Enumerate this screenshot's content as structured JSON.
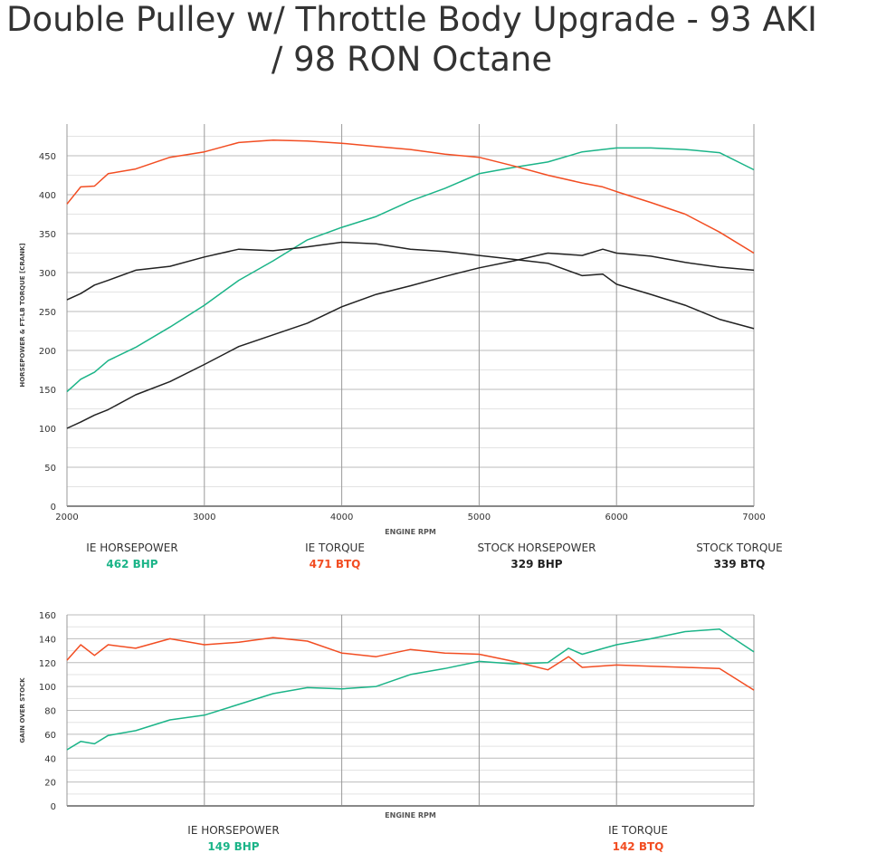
{
  "title": {
    "line1": "Double Pulley w/ Throttle Body Upgrade - 93 AKI",
    "line2": "/ 98 RON Octane"
  },
  "colors": {
    "ie_hp": "#1bb488",
    "ie_tq": "#f24d22",
    "stock": "#222222"
  },
  "chart_data": [
    {
      "type": "line",
      "xlabel": "ENGINE RPM",
      "ylabel": "HORSEPOWER & FT-LB TORQUE [CRANK]",
      "xlim": [
        2000,
        7000
      ],
      "ylim": [
        0,
        475
      ],
      "xticks": [
        2000,
        3000,
        4000,
        5000,
        6000,
        7000
      ],
      "yticks": [
        0,
        50,
        100,
        150,
        200,
        250,
        300,
        350,
        400,
        450
      ],
      "grid": true,
      "x": [
        2000,
        2100,
        2200,
        2300,
        2500,
        2750,
        3000,
        3250,
        3500,
        3750,
        4000,
        4250,
        4500,
        4750,
        5000,
        5250,
        5500,
        5750,
        5900,
        6000,
        6250,
        6500,
        6750,
        7000
      ],
      "series": [
        {
          "name": "IE HORSEPOWER",
          "color": "ie_hp",
          "values": [
            147,
            163,
            172,
            187,
            204,
            230,
            258,
            290,
            315,
            342,
            358,
            372,
            392,
            408,
            427,
            435,
            442,
            455,
            458,
            460,
            460,
            458,
            454,
            432
          ]
        },
        {
          "name": "IE TORQUE",
          "color": "ie_tq",
          "values": [
            388,
            410,
            411,
            427,
            433,
            448,
            455,
            467,
            470,
            469,
            466,
            462,
            458,
            452,
            448,
            437,
            425,
            415,
            410,
            404,
            390,
            375,
            352,
            325
          ]
        },
        {
          "name": "STOCK HORSEPOWER",
          "color": "stock",
          "values": [
            100,
            108,
            117,
            124,
            143,
            160,
            182,
            205,
            220,
            235,
            256,
            272,
            283,
            295,
            306,
            315,
            325,
            322,
            330,
            325,
            321,
            313,
            307,
            303
          ]
        },
        {
          "name": "STOCK TORQUE",
          "color": "stock",
          "values": [
            265,
            273,
            284,
            290,
            303,
            308,
            320,
            330,
            328,
            333,
            339,
            337,
            330,
            327,
            322,
            317,
            312,
            296,
            298,
            285,
            272,
            258,
            240,
            228
          ]
        }
      ],
      "legend": [
        {
          "label": "IE HORSEPOWER",
          "value": "462 BHP",
          "color": "ie_hp"
        },
        {
          "label": "IE TORQUE",
          "value": "471 BTQ",
          "color": "ie_tq"
        },
        {
          "label": "STOCK HORSEPOWER",
          "value": "329 BHP",
          "color": "stock"
        },
        {
          "label": "STOCK TORQUE",
          "value": "339 BTQ",
          "color": "stock"
        }
      ]
    },
    {
      "type": "line",
      "xlabel": "ENGINE RPM",
      "ylabel": "GAIN OVER STOCK",
      "xlim": [
        2000,
        7000
      ],
      "ylim": [
        0,
        160
      ],
      "yticks": [
        0,
        20,
        40,
        60,
        80,
        100,
        120,
        140,
        160
      ],
      "grid": true,
      "x": [
        2000,
        2100,
        2200,
        2300,
        2500,
        2750,
        3000,
        3250,
        3500,
        3750,
        4000,
        4250,
        4500,
        4750,
        5000,
        5250,
        5500,
        5650,
        5750,
        6000,
        6250,
        6500,
        6750,
        7000
      ],
      "series": [
        {
          "name": "IE HORSEPOWER",
          "color": "ie_hp",
          "values": [
            47,
            54,
            52,
            59,
            63,
            72,
            76,
            85,
            94,
            99,
            98,
            100,
            110,
            115,
            121,
            119,
            120,
            132,
            127,
            135,
            140,
            146,
            148,
            129
          ]
        },
        {
          "name": "IE TORQUE",
          "color": "ie_tq",
          "values": [
            122,
            135,
            126,
            135,
            132,
            140,
            135,
            137,
            141,
            138,
            128,
            125,
            131,
            128,
            127,
            121,
            114,
            125,
            116,
            118,
            117,
            116,
            115,
            97
          ]
        }
      ],
      "legend": [
        {
          "label": "IE HORSEPOWER",
          "value": "149 BHP",
          "color": "ie_hp"
        },
        {
          "label": "IE TORQUE",
          "value": "142 BTQ",
          "color": "ie_tq"
        }
      ]
    }
  ]
}
